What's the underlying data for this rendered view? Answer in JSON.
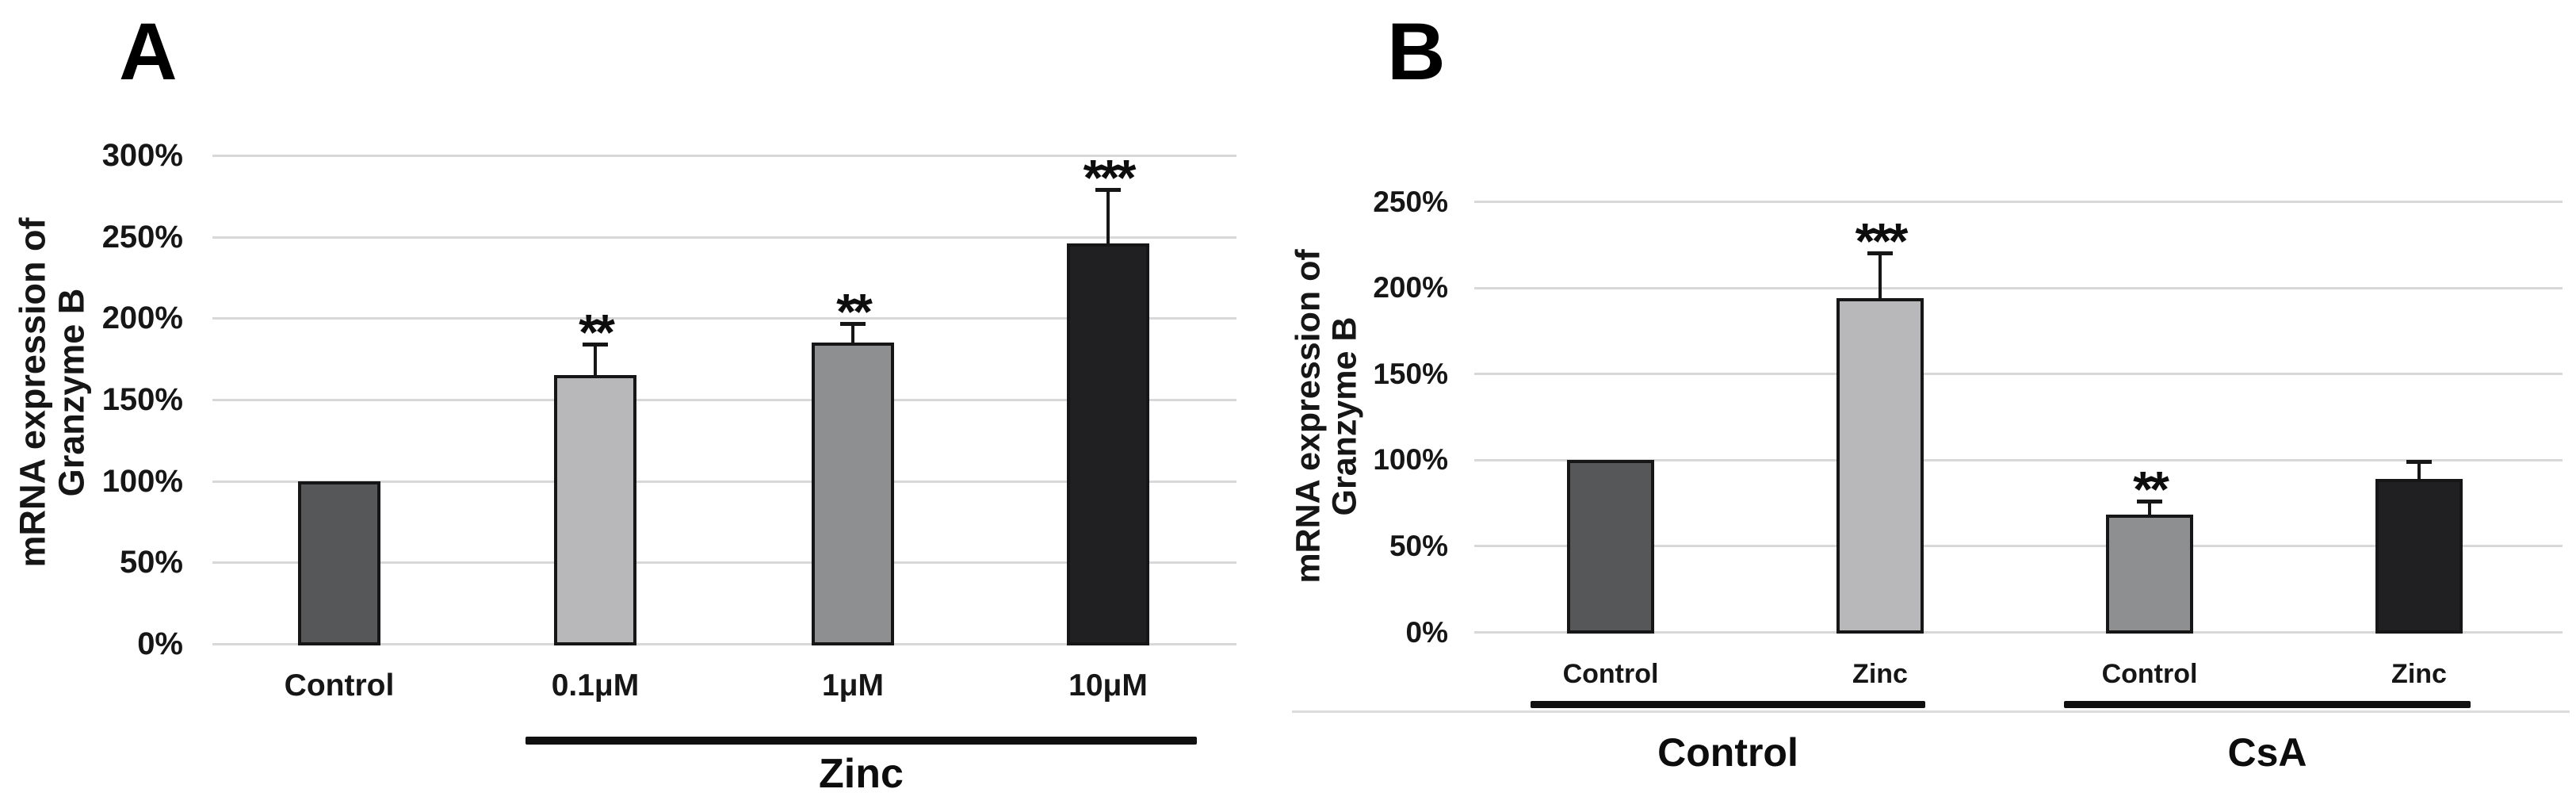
{
  "figure": {
    "background": "#ffffff",
    "gridline_color": "#d8d8d8",
    "bar_outline_color": "#161616",
    "text_color": "#161616"
  },
  "chart_data": [
    {
      "type": "bar",
      "panel_label": "A",
      "ylabel": "mRNA expression of Granzyme B",
      "ylabel_lines": [
        "mRNA expression of",
        "Granzyme B"
      ],
      "categories": [
        "Control",
        "0.1μM",
        "1μM",
        "10μM"
      ],
      "values": [
        100,
        165,
        185,
        246
      ],
      "errors_plus": [
        0,
        19,
        12,
        33
      ],
      "significance": [
        "",
        "**",
        "**",
        "***"
      ],
      "bar_colors": [
        "#565759",
        "#b8b8ba",
        "#8e8f91",
        "#202022"
      ],
      "ylim": [
        0,
        300
      ],
      "ytick_step": 50,
      "ytick_labels": [
        "300%",
        "250%",
        "200%",
        "150%",
        "100%",
        "50%",
        "0%"
      ],
      "ytick_values": [
        300,
        250,
        200,
        150,
        100,
        50,
        0
      ],
      "group_annotations": [
        {
          "label": "Zinc",
          "from": 1,
          "to": 3
        }
      ],
      "grid": true,
      "legend": "none"
    },
    {
      "type": "bar",
      "panel_label": "B",
      "ylabel": "mRNA expression of Granzyme B",
      "ylabel_lines": [
        "mRNA expression of",
        "Granzyme B"
      ],
      "categories": [
        "Control",
        "Zinc",
        "Control",
        "Zinc"
      ],
      "values": [
        100,
        194,
        68,
        89
      ],
      "errors_plus": [
        0,
        26,
        8,
        10
      ],
      "significance": [
        "",
        "***",
        "**",
        ""
      ],
      "bar_colors": [
        "#565759",
        "#b8b8ba",
        "#8e8f91",
        "#202022"
      ],
      "ylim": [
        0,
        250
      ],
      "ytick_step": 50,
      "ytick_labels": [
        "250%",
        "200%",
        "150%",
        "100%",
        "50%",
        "0%"
      ],
      "ytick_values": [
        250,
        200,
        150,
        100,
        50,
        0
      ],
      "group_annotations": [
        {
          "label": "Control",
          "from": 0,
          "to": 1
        },
        {
          "label": "CsA",
          "from": 2,
          "to": 3
        }
      ],
      "grid": true,
      "legend": "none"
    }
  ]
}
